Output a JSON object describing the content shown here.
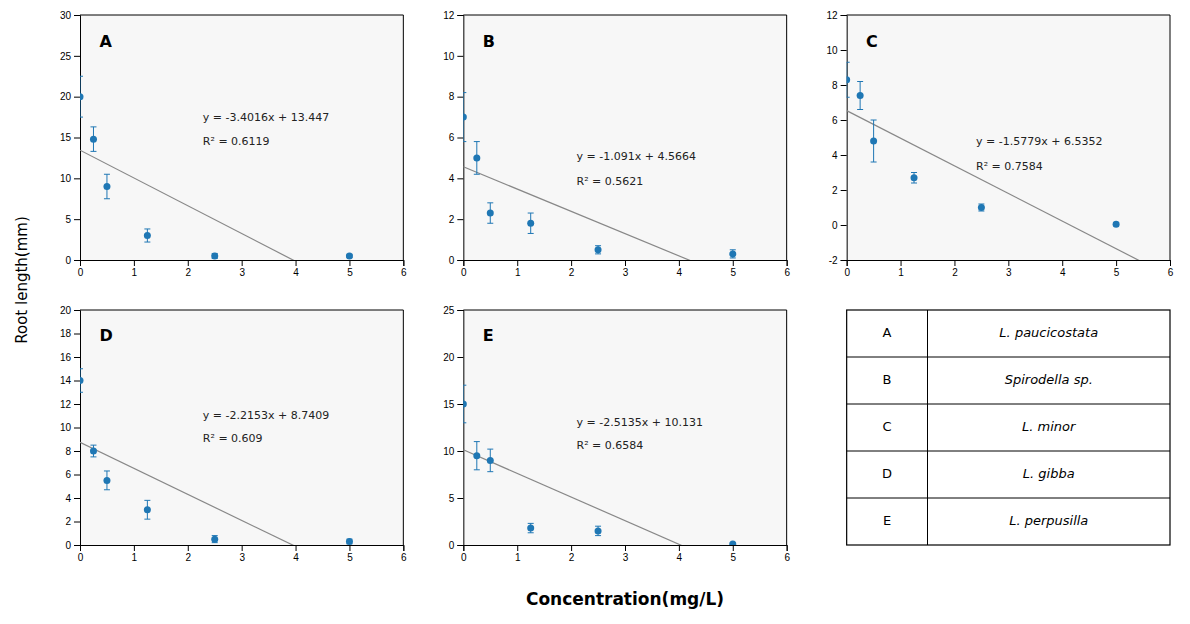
{
  "chart_data": [
    {
      "type": "scatter",
      "title": "A",
      "annotations": [
        "y = -3.4016x + 13.447",
        "R² = 0.6119"
      ],
      "x": [
        0,
        0.25,
        0.5,
        1.25,
        2.5,
        5.0
      ],
      "values": [
        20.0,
        14.8,
        9.0,
        3.0,
        0.5,
        0.5
      ],
      "errors": [
        2.5,
        1.5,
        1.5,
        0.8,
        0.3,
        0.2
      ],
      "trendline": {
        "slope": -3.4016,
        "intercept": 13.447
      },
      "xlim": [
        0,
        6
      ],
      "xticks": [
        0,
        1,
        2,
        3,
        4,
        5,
        6
      ],
      "ylim": [
        0,
        30
      ],
      "yticks": [
        0,
        5,
        10,
        15,
        20,
        25,
        30
      ]
    },
    {
      "type": "scatter",
      "title": "B",
      "annotations": [
        "y = -1.091x + 4.5664",
        "R² = 0.5621"
      ],
      "x": [
        0,
        0.25,
        0.5,
        1.25,
        2.5,
        5.0
      ],
      "values": [
        7.0,
        5.0,
        2.3,
        1.8,
        0.5,
        0.3
      ],
      "errors": [
        1.2,
        0.8,
        0.5,
        0.5,
        0.2,
        0.2
      ],
      "trendline": {
        "slope": -1.091,
        "intercept": 4.5664
      },
      "xlim": [
        0,
        6
      ],
      "xticks": [
        0,
        1,
        2,
        3,
        4,
        5,
        6
      ],
      "ylim": [
        0,
        12
      ],
      "yticks": [
        0,
        2,
        4,
        6,
        8,
        10,
        12
      ]
    },
    {
      "type": "scatter",
      "title": "C",
      "annotations": [
        "y = -1.5779x + 6.5352",
        "R² = 0.7584"
      ],
      "x": [
        0,
        0.25,
        0.5,
        1.25,
        2.5,
        5.0
      ],
      "values": [
        8.3,
        7.4,
        4.8,
        2.7,
        1.0,
        0.05
      ],
      "errors": [
        1.0,
        0.8,
        1.2,
        0.3,
        0.2,
        0.1
      ],
      "trendline": {
        "slope": -1.5779,
        "intercept": 6.5352
      },
      "xlim": [
        0,
        6
      ],
      "xticks": [
        0,
        1,
        2,
        3,
        4,
        5,
        6
      ],
      "ylim": [
        -2,
        12
      ],
      "yticks": [
        -2,
        0,
        2,
        4,
        6,
        8,
        10,
        12
      ]
    },
    {
      "type": "scatter",
      "title": "D",
      "annotations": [
        "y = -2.2153x + 8.7409",
        "R² = 0.609"
      ],
      "x": [
        0,
        0.25,
        0.5,
        1.25,
        2.5,
        5.0
      ],
      "values": [
        14.0,
        8.0,
        5.5,
        3.0,
        0.5,
        0.3
      ],
      "errors": [
        1.0,
        0.5,
        0.8,
        0.8,
        0.3,
        0.2
      ],
      "trendline": {
        "slope": -2.2153,
        "intercept": 8.7409
      },
      "xlim": [
        0,
        6
      ],
      "xticks": [
        0,
        1,
        2,
        3,
        4,
        5,
        6
      ],
      "ylim": [
        0,
        20
      ],
      "yticks": [
        0,
        2,
        4,
        6,
        8,
        10,
        12,
        14,
        16,
        18,
        20
      ]
    },
    {
      "type": "scatter",
      "title": "E",
      "annotations": [
        "y = -2.5135x + 10.131",
        "R² = 0.6584"
      ],
      "x": [
        0,
        0.25,
        0.5,
        1.25,
        2.5,
        5.0
      ],
      "values": [
        15.0,
        9.5,
        9.0,
        1.8,
        1.5,
        0.1
      ],
      "errors": [
        2.0,
        1.5,
        1.2,
        0.5,
        0.5,
        0.1
      ],
      "trendline": {
        "slope": -2.5135,
        "intercept": 10.131
      },
      "xlim": [
        0,
        6
      ],
      "xticks": [
        0,
        1,
        2,
        3,
        4,
        5,
        6
      ],
      "ylim": [
        0,
        25
      ],
      "yticks": [
        0,
        5,
        10,
        15,
        20,
        25
      ]
    }
  ],
  "xlabel": "Concentration(mg/L)",
  "ylabel": "Root length(mm)",
  "legend_table": [
    {
      "label": "A",
      "name": "L. paucicostata"
    },
    {
      "label": "B",
      "name": "Spirodella sp."
    },
    {
      "label": "C",
      "name": "L. minor"
    },
    {
      "label": "D",
      "name": "L. gibba"
    },
    {
      "label": "E",
      "name": "L. perpusilla"
    }
  ]
}
